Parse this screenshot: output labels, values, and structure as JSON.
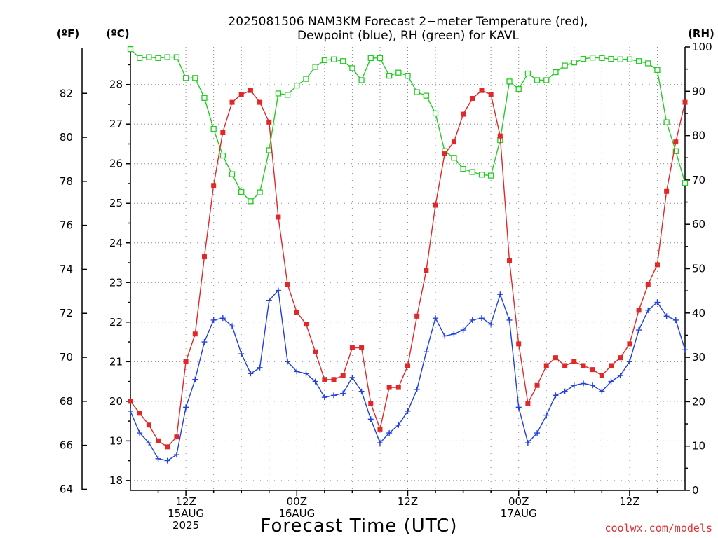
{
  "chart_data": {
    "type": "line",
    "title_line1": "2025081506 NAM3KM Forecast 2−meter Temperature (red),",
    "title_line2": "Dewpoint (blue), RH (green) for KAVL",
    "xlabel": "Forecast Time (UTC)",
    "units": {
      "f": "(ºF)",
      "c": "(ºC)",
      "rh": "(RH)"
    },
    "credit": "coolwx.com/models",
    "x_range_hours": [
      6,
      66
    ],
    "c_range": [
      17.75,
      28.95
    ],
    "rh_range": [
      0,
      100
    ],
    "y_ticks_c": [
      "18",
      "19",
      "20",
      "21",
      "22",
      "23",
      "24",
      "25",
      "26",
      "27",
      "28"
    ],
    "y_ticks_f": [
      "64",
      "66",
      "68",
      "70",
      "72",
      "74",
      "76",
      "78",
      "80",
      "82"
    ],
    "y_ticks_rh": [
      "0",
      "10",
      "20",
      "30",
      "40",
      "50",
      "60",
      "70",
      "80",
      "90",
      "100"
    ],
    "x_ticks": [
      {
        "hour": 12,
        "lines": [
          "12Z",
          "15AUG",
          "2025"
        ]
      },
      {
        "hour": 24,
        "lines": [
          "00Z",
          "16AUG"
        ]
      },
      {
        "hour": 36,
        "lines": [
          "12Z"
        ]
      },
      {
        "hour": 48,
        "lines": [
          "00Z",
          "17AUG"
        ]
      },
      {
        "hour": 60,
        "lines": [
          "12Z"
        ]
      }
    ],
    "series": [
      {
        "name": "Temperature",
        "unit": "C",
        "color": "#e02828",
        "marker": "filled-square",
        "points": [
          [
            6,
            20.0
          ],
          [
            7,
            19.7
          ],
          [
            8,
            19.4
          ],
          [
            9,
            19.0
          ],
          [
            10,
            18.85
          ],
          [
            11,
            19.1
          ],
          [
            12,
            21.0
          ],
          [
            13,
            21.7
          ],
          [
            14,
            23.65
          ],
          [
            15,
            25.45
          ],
          [
            16,
            26.8
          ],
          [
            17,
            27.55
          ],
          [
            18,
            27.75
          ],
          [
            19,
            27.85
          ],
          [
            20,
            27.55
          ],
          [
            21,
            27.05
          ],
          [
            22,
            24.65
          ],
          [
            23,
            22.95
          ],
          [
            24,
            22.25
          ],
          [
            25,
            21.95
          ],
          [
            26,
            21.25
          ],
          [
            27,
            20.55
          ],
          [
            28,
            20.55
          ],
          [
            29,
            20.65
          ],
          [
            30,
            21.35
          ],
          [
            31,
            21.35
          ],
          [
            32,
            19.95
          ],
          [
            33,
            19.3
          ],
          [
            34,
            20.35
          ],
          [
            35,
            20.35
          ],
          [
            36,
            20.9
          ],
          [
            37,
            22.15
          ],
          [
            38,
            23.3
          ],
          [
            39,
            24.95
          ],
          [
            40,
            26.25
          ],
          [
            41,
            26.55
          ],
          [
            42,
            27.25
          ],
          [
            43,
            27.65
          ],
          [
            44,
            27.85
          ],
          [
            45,
            27.75
          ],
          [
            46,
            26.7
          ],
          [
            47,
            23.55
          ],
          [
            48,
            21.45
          ],
          [
            49,
            19.95
          ],
          [
            50,
            20.4
          ],
          [
            51,
            20.9
          ],
          [
            52,
            21.1
          ],
          [
            53,
            20.9
          ],
          [
            54,
            21.0
          ],
          [
            55,
            20.9
          ],
          [
            56,
            20.8
          ],
          [
            57,
            20.65
          ],
          [
            58,
            20.9
          ],
          [
            59,
            21.1
          ],
          [
            60,
            21.45
          ],
          [
            61,
            22.3
          ],
          [
            62,
            22.95
          ],
          [
            63,
            23.45
          ],
          [
            64,
            25.3
          ],
          [
            65,
            26.55
          ],
          [
            66,
            27.55
          ]
        ]
      },
      {
        "name": "Dewpoint",
        "unit": "C",
        "color": "#2040e0",
        "marker": "plus",
        "points": [
          [
            6,
            19.75
          ],
          [
            7,
            19.2
          ],
          [
            8,
            18.95
          ],
          [
            9,
            18.55
          ],
          [
            10,
            18.5
          ],
          [
            11,
            18.65
          ],
          [
            12,
            19.85
          ],
          [
            13,
            20.55
          ],
          [
            14,
            21.5
          ],
          [
            15,
            22.05
          ],
          [
            16,
            22.1
          ],
          [
            17,
            21.9
          ],
          [
            18,
            21.2
          ],
          [
            19,
            20.7
          ],
          [
            20,
            20.85
          ],
          [
            21,
            22.55
          ],
          [
            22,
            22.8
          ],
          [
            23,
            21.0
          ],
          [
            24,
            20.75
          ],
          [
            25,
            20.7
          ],
          [
            26,
            20.5
          ],
          [
            27,
            20.1
          ],
          [
            28,
            20.15
          ],
          [
            29,
            20.2
          ],
          [
            30,
            20.6
          ],
          [
            31,
            20.25
          ],
          [
            32,
            19.55
          ],
          [
            33,
            18.95
          ],
          [
            34,
            19.2
          ],
          [
            35,
            19.4
          ],
          [
            36,
            19.75
          ],
          [
            37,
            20.3
          ],
          [
            38,
            21.25
          ],
          [
            39,
            22.1
          ],
          [
            40,
            21.65
          ],
          [
            41,
            21.7
          ],
          [
            42,
            21.8
          ],
          [
            43,
            22.05
          ],
          [
            44,
            22.1
          ],
          [
            45,
            21.95
          ],
          [
            46,
            22.7
          ],
          [
            47,
            22.05
          ],
          [
            48,
            19.85
          ],
          [
            49,
            18.95
          ],
          [
            50,
            19.2
          ],
          [
            51,
            19.65
          ],
          [
            52,
            20.15
          ],
          [
            53,
            20.25
          ],
          [
            54,
            20.4
          ],
          [
            55,
            20.45
          ],
          [
            56,
            20.4
          ],
          [
            57,
            20.25
          ],
          [
            58,
            20.5
          ],
          [
            59,
            20.65
          ],
          [
            60,
            21.0
          ],
          [
            61,
            21.8
          ],
          [
            62,
            22.3
          ],
          [
            63,
            22.5
          ],
          [
            64,
            22.15
          ],
          [
            65,
            22.05
          ],
          [
            66,
            21.3
          ]
        ]
      },
      {
        "name": "RH",
        "unit": "%",
        "color": "#22cc22",
        "marker": "open-square",
        "points": [
          [
            6,
            99.5
          ],
          [
            7,
            97.5
          ],
          [
            8,
            97.7
          ],
          [
            9,
            97.5
          ],
          [
            10,
            97.7
          ],
          [
            11,
            97.7
          ],
          [
            12,
            93.0
          ],
          [
            13,
            93.0
          ],
          [
            14,
            88.5
          ],
          [
            15,
            81.5
          ],
          [
            16,
            75.5
          ],
          [
            17,
            71.3
          ],
          [
            18,
            67.3
          ],
          [
            19,
            65.2
          ],
          [
            20,
            67.2
          ],
          [
            21,
            76.7
          ],
          [
            22,
            89.5
          ],
          [
            23,
            89.2
          ],
          [
            24,
            91.3
          ],
          [
            25,
            92.8
          ],
          [
            26,
            95.5
          ],
          [
            27,
            97.0
          ],
          [
            28,
            97.2
          ],
          [
            29,
            96.8
          ],
          [
            30,
            95.2
          ],
          [
            31,
            92.5
          ],
          [
            32,
            97.5
          ],
          [
            33,
            97.5
          ],
          [
            34,
            93.5
          ],
          [
            35,
            94.2
          ],
          [
            36,
            93.5
          ],
          [
            37,
            89.8
          ],
          [
            38,
            89.0
          ],
          [
            39,
            85.0
          ],
          [
            40,
            76.5
          ],
          [
            41,
            75.0
          ],
          [
            42,
            72.5
          ],
          [
            43,
            71.8
          ],
          [
            44,
            71.2
          ],
          [
            45,
            71.0
          ],
          [
            46,
            79.0
          ],
          [
            47,
            92.2
          ],
          [
            48,
            90.5
          ],
          [
            49,
            94.0
          ],
          [
            50,
            92.5
          ],
          [
            51,
            92.5
          ],
          [
            52,
            94.3
          ],
          [
            53,
            95.8
          ],
          [
            54,
            96.5
          ],
          [
            55,
            97.3
          ],
          [
            56,
            97.6
          ],
          [
            57,
            97.5
          ],
          [
            58,
            97.3
          ],
          [
            59,
            97.2
          ],
          [
            60,
            97.2
          ],
          [
            61,
            96.8
          ],
          [
            62,
            96.3
          ],
          [
            63,
            94.8
          ],
          [
            64,
            83.0
          ],
          [
            65,
            76.5
          ],
          [
            66,
            69.3
          ]
        ]
      }
    ]
  }
}
